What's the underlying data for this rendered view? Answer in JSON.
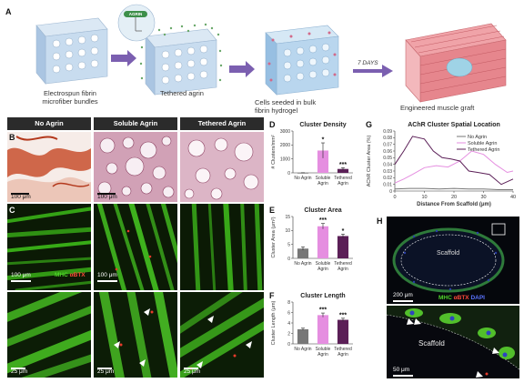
{
  "panel_a": {
    "letter": "A",
    "steps": [
      {
        "caption_1": "Electrospun fibrin",
        "caption_2": "microfiber bundles"
      },
      {
        "caption_1": "Tethered agrin",
        "caption_2": ""
      },
      {
        "caption_1": "Cells seeded in bulk",
        "caption_2": "fibrin hydrogel"
      },
      {
        "caption_1": "Engineered muscle graft",
        "caption_2": ""
      }
    ],
    "arrow_label": "7 DAYS",
    "inset_label": "AGRIN"
  },
  "columns": [
    "No Agrin",
    "Soluble Agrin",
    "Tethered Agrin"
  ],
  "panel_b": {
    "letter": "B",
    "scale": "100 μm"
  },
  "panel_c": {
    "letter": "C",
    "scale_top": "100 μm",
    "scale_bottom": "25 μm",
    "stain_1": "MHC",
    "stain_2": "αBTX"
  },
  "panel_h": {
    "letter": "H",
    "scaffold_label": "Scaffold",
    "scale_top": "200 μm",
    "scale_bottom": "50 μm",
    "stain_1": "MHC",
    "stain_2": "αBTX",
    "stain_3": "DAPI"
  },
  "colors": {
    "no_agrin": "#777777",
    "soluble_agrin": "#e58ee0",
    "tethered_agrin": "#5b1f57",
    "header_bg": "#2b2b2b",
    "arrow": "#7b5fb0"
  },
  "chart_data": [
    {
      "letter": "D",
      "type": "bar",
      "title": "Cluster Density",
      "ylabel": "# Clusters/mm²",
      "categories": [
        "No Agrin",
        "Soluble Agrin",
        "Tethered Agrin"
      ],
      "category_lines": [
        [
          "No Agrin"
        ],
        [
          "Soluble",
          "Agrin"
        ],
        [
          "Tethered",
          "Agrin"
        ]
      ],
      "values": [
        5,
        1600,
        280
      ],
      "errors": [
        3,
        550,
        90
      ],
      "significance": [
        "",
        "*",
        "***"
      ],
      "ylim": [
        0,
        3000
      ],
      "yticks": [
        0,
        1000,
        2000,
        3000
      ]
    },
    {
      "letter": "E",
      "type": "bar",
      "title": "Cluster Area",
      "ylabel": "Cluster Area (μm²)",
      "categories": [
        "No Agrin",
        "Soluble Agrin",
        "Tethered Agrin"
      ],
      "category_lines": [
        [
          "No Agrin"
        ],
        [
          "Soluble",
          "Agrin"
        ],
        [
          "Tethered",
          "Agrin"
        ]
      ],
      "values": [
        3.5,
        11.5,
        8
      ],
      "errors": [
        0.6,
        1.0,
        0.7
      ],
      "significance": [
        "",
        "***",
        "*"
      ],
      "ylim": [
        0,
        15
      ],
      "yticks": [
        0,
        5,
        10,
        15
      ]
    },
    {
      "letter": "F",
      "type": "bar",
      "title": "Cluster Length",
      "ylabel": "Cluster Length (μm)",
      "categories": [
        "No Agrin",
        "Soluble Agrin",
        "Tethered Agrin"
      ],
      "category_lines": [
        [
          "No Agrin"
        ],
        [
          "Soluble",
          "Agrin"
        ],
        [
          "Tethered",
          "Agrin"
        ]
      ],
      "values": [
        2.8,
        5.5,
        4.6
      ],
      "errors": [
        0.2,
        0.4,
        0.3
      ],
      "significance": [
        "",
        "***",
        "***"
      ],
      "ylim": [
        0,
        8
      ],
      "yticks": [
        0,
        2,
        4,
        6,
        8
      ]
    },
    {
      "letter": "G",
      "type": "line",
      "title": "AChR Cluster Spatial Location",
      "xlabel": "Distance From Scaffold (μm)",
      "ylabel": "AChR Cluster Area (%)",
      "xlim": [
        0,
        40
      ],
      "ylim": [
        0,
        0.09
      ],
      "xticks": [
        0,
        10,
        20,
        30,
        40
      ],
      "yticks": [
        0,
        0.01,
        0.02,
        0.03,
        0.04,
        0.05,
        0.06,
        0.07,
        0.08,
        0.09
      ],
      "legend_position": "top-right",
      "series": [
        {
          "name": "No Agrin",
          "x": [
            0,
            5,
            10,
            15,
            20,
            25,
            30,
            35,
            40
          ],
          "y": [
            0.003,
            0.004,
            0.004,
            0.003,
            0.004,
            0.003,
            0.003,
            0.002,
            0.002
          ]
        },
        {
          "name": "Soluble Agrin",
          "x": [
            0,
            3,
            6,
            10,
            14,
            18,
            22,
            26,
            30,
            34,
            38,
            40
          ],
          "y": [
            0.012,
            0.018,
            0.025,
            0.035,
            0.038,
            0.036,
            0.045,
            0.06,
            0.055,
            0.04,
            0.028,
            0.03
          ]
        },
        {
          "name": "Tethered Agrin",
          "x": [
            0,
            3,
            6,
            10,
            13,
            16,
            19,
            22,
            25,
            28,
            32,
            36,
            40
          ],
          "y": [
            0.04,
            0.06,
            0.082,
            0.078,
            0.06,
            0.05,
            0.048,
            0.045,
            0.03,
            0.028,
            0.025,
            0.01,
            0.018
          ]
        }
      ]
    }
  ]
}
